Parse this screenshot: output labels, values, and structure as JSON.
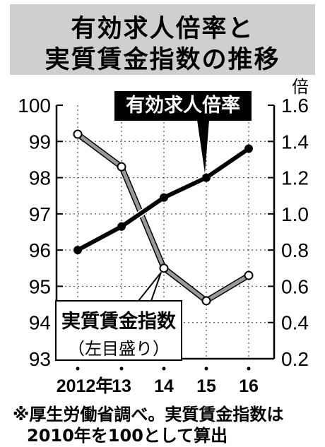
{
  "title": {
    "line1": "有効求人倍率と",
    "line2": "実質賃金指数の推移"
  },
  "right_unit": "倍",
  "series_labels": {
    "jobs_ratio": "有効求人倍率",
    "real_wage": "実質賃金指数",
    "real_wage_axis_note": "（左目盛り）"
  },
  "note": {
    "line1": "※厚生労働省調べ。実質賃金指数は",
    "line2": "2010年を100として算出"
  },
  "colors": {
    "jobs_ratio": "#000000",
    "real_wage": "#999999",
    "title_bg": "#cfcfcf"
  },
  "chart_data": {
    "type": "line",
    "categories": [
      "2012年",
      "13",
      "14",
      "15",
      "16"
    ],
    "left_axis": {
      "ylim": [
        93,
        100
      ],
      "ticks": [
        "93",
        "94",
        "95",
        "96",
        "97",
        "98",
        "99",
        "100"
      ]
    },
    "right_axis": {
      "ylim": [
        0.2,
        1.6
      ],
      "ticks": [
        "0.2",
        "0.4",
        "0.6",
        "0.8",
        "1.0",
        "1.2",
        "1.4",
        "1.6"
      ]
    },
    "grid": true,
    "series": [
      {
        "name": "有効求人倍率",
        "axis": "right",
        "values": [
          0.8,
          0.93,
          1.09,
          1.2,
          1.36
        ]
      },
      {
        "name": "実質賃金指数",
        "axis": "left",
        "values": [
          99.2,
          98.3,
          95.5,
          94.6,
          95.3
        ]
      }
    ]
  }
}
